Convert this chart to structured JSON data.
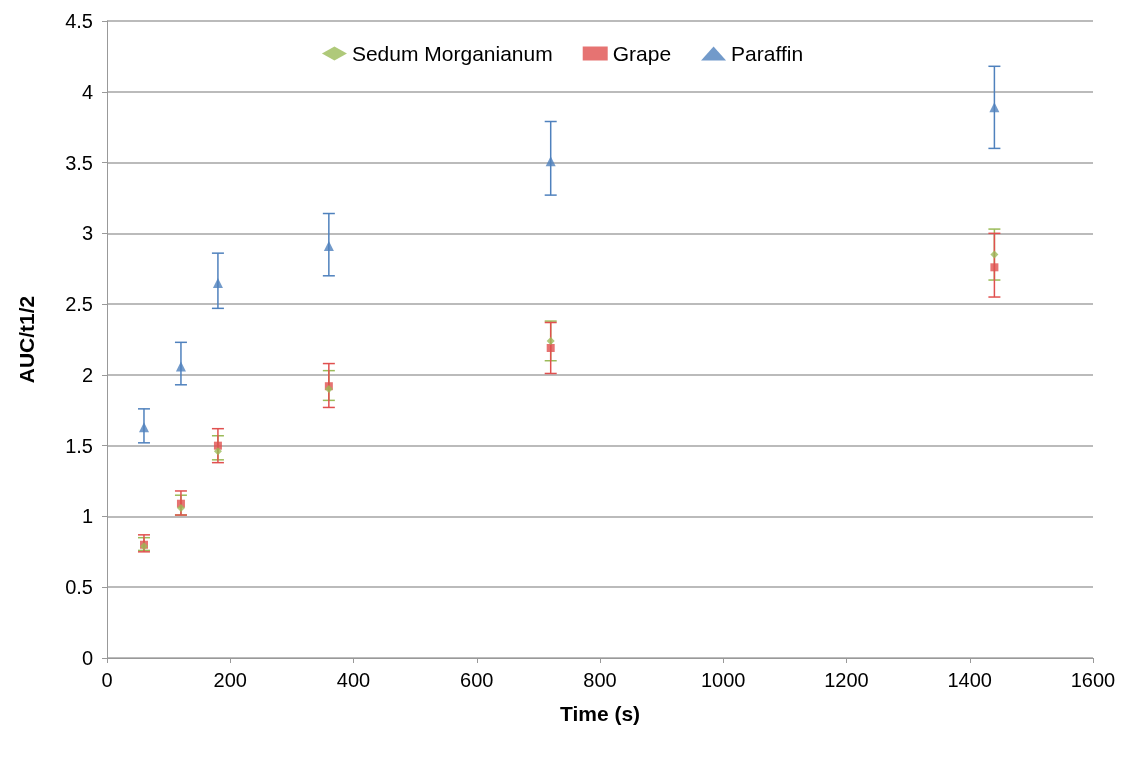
{
  "chart_data": {
    "type": "scatter",
    "xlabel": "Time (s)",
    "ylabel": "AUC/t1/2",
    "x": [
      60,
      120,
      180,
      360,
      720,
      1440
    ],
    "series": [
      {
        "name": "Sedum Morganianum",
        "color": "#9bbb59",
        "marker": "diamond",
        "values": [
          0.79,
          1.06,
          1.46,
          1.9,
          2.24,
          2.85
        ],
        "errors": [
          [
            0.76,
            0.85
          ],
          [
            1.01,
            1.15
          ],
          [
            1.4,
            1.57
          ],
          [
            1.82,
            2.03
          ],
          [
            2.1,
            2.38
          ],
          [
            2.67,
            3.03
          ]
        ]
      },
      {
        "name": "Grape",
        "color": "#e0504f",
        "marker": "square",
        "values": [
          0.8,
          1.09,
          1.5,
          1.92,
          2.19,
          2.76
        ],
        "errors": [
          [
            0.75,
            0.87
          ],
          [
            1.01,
            1.18
          ],
          [
            1.38,
            1.62
          ],
          [
            1.77,
            2.08
          ],
          [
            2.01,
            2.37
          ],
          [
            2.55,
            3.0
          ]
        ]
      },
      {
        "name": "Paraffin",
        "color": "#4f81bd",
        "marker": "triangle",
        "values": [
          1.63,
          2.06,
          2.65,
          2.91,
          3.51,
          3.89
        ],
        "errors": [
          [
            1.52,
            1.76
          ],
          [
            1.93,
            2.23
          ],
          [
            2.47,
            2.86
          ],
          [
            2.7,
            3.14
          ],
          [
            3.27,
            3.79
          ],
          [
            3.6,
            4.18
          ]
        ]
      }
    ],
    "xlim": [
      0,
      1600
    ],
    "xticks": [
      0,
      200,
      400,
      600,
      800,
      1000,
      1200,
      1400,
      1600
    ],
    "ylim": [
      0,
      4.5
    ],
    "yticks": [
      0,
      0.5,
      1,
      1.5,
      2,
      2.5,
      3,
      3.5,
      4,
      4.5
    ],
    "grid": "y",
    "legend": "top"
  }
}
